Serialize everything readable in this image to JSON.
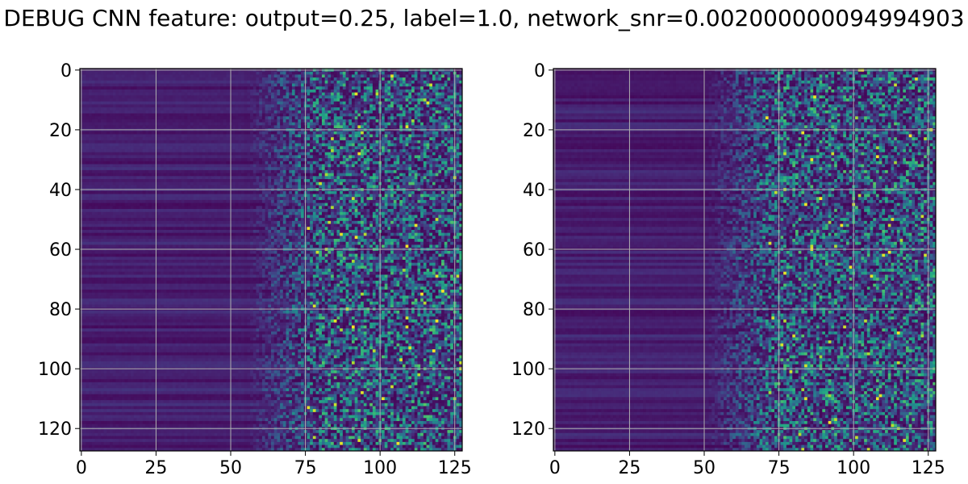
{
  "figure": {
    "title": "DEBUG CNN feature: output=0.25, label=1.0, network_snr=0.002000000094994903"
  },
  "chart_data": [
    {
      "type": "heatmap",
      "title": "",
      "xlabel": "",
      "ylabel": "",
      "rows": 128,
      "cols": 128,
      "xlim": [
        0,
        127
      ],
      "ylim": [
        127,
        0
      ],
      "xticks": [
        0,
        25,
        50,
        75,
        100,
        125
      ],
      "yticks": [
        0,
        20,
        40,
        60,
        80,
        100,
        120
      ],
      "grid": true,
      "colormap": "viridis",
      "description_pattern": "dark uniform columns 0-75, noisy brighter columns 75-127"
    },
    {
      "type": "heatmap",
      "title": "",
      "xlabel": "",
      "ylabel": "",
      "rows": 128,
      "cols": 128,
      "xlim": [
        0,
        127
      ],
      "ylim": [
        127,
        0
      ],
      "xticks": [
        0,
        25,
        50,
        75,
        100,
        125
      ],
      "yticks": [
        0,
        20,
        40,
        60,
        80,
        100,
        120
      ],
      "grid": true,
      "colormap": "viridis",
      "description_pattern": "dark uniform columns 0-70, noisy brighter columns 70-127"
    }
  ],
  "colors": {
    "viridis_low": "#440154",
    "viridis_mid": "#21918c",
    "viridis_high": "#fde725",
    "grid": "#b0b0b0"
  }
}
